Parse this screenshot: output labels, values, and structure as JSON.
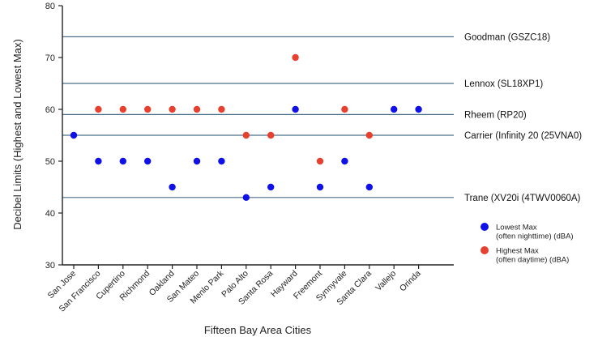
{
  "chart_data": {
    "type": "scatter",
    "xlabel": "Fifteen Bay Area Cities",
    "ylabel": "Decibel Limits (Highest and Lowest Max)",
    "ylim": [
      30,
      80
    ],
    "yticks": [
      30,
      40,
      50,
      60,
      70,
      80
    ],
    "grid": false,
    "legend_position": "right",
    "categories": [
      "San Jose",
      "San Francisco",
      "Cupertino",
      "Richmond",
      "Oakland",
      "San Mateo",
      "Menlo Park",
      "Palo Alto",
      "Santa Rosa",
      "Hayward",
      "Freemont",
      "Synnyvale",
      "Santa Clara",
      "Vallejo",
      "Orinda"
    ],
    "series": [
      {
        "name_lines": [
          "Lowest Max",
          "(often nighttime) (dBA)"
        ],
        "color": "#1010e8",
        "values": [
          55,
          50,
          50,
          50,
          45,
          50,
          50,
          43,
          45,
          60,
          45,
          50,
          45,
          60,
          60
        ]
      },
      {
        "name_lines": [
          "Highest Max",
          "(often daytime) (dBA)"
        ],
        "color": "#e8402f",
        "values": [
          null,
          60,
          60,
          60,
          60,
          60,
          60,
          55,
          55,
          70,
          50,
          60,
          55,
          null,
          null
        ]
      }
    ],
    "reference_lines": [
      {
        "label": "Goodman (GSZC18)",
        "value": 74
      },
      {
        "label": "Lennox (SL18XP1)",
        "value": 65
      },
      {
        "label": "Rheem (RP20)",
        "value": 59
      },
      {
        "label": "Carrier (Infinity 20 (25VNA0)",
        "value": 55
      },
      {
        "label": "Trane (XV20i (4TWV0060A)",
        "value": 43
      }
    ],
    "reference_line_color": "#4a6f8a"
  }
}
